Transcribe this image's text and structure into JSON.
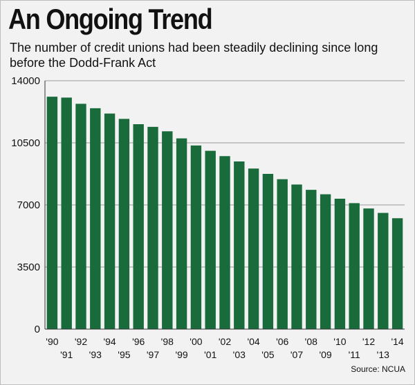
{
  "title": "An Ongoing Trend",
  "subtitle": "The number of credit unions had been steadily declining since long before the Dodd-Frank Act",
  "source": "Source: NCUA",
  "colors": {
    "bar": "#1a6b3c",
    "grid": "#9a9a9a",
    "axis": "#333333",
    "background": "#f2f2f2"
  },
  "chart_data": {
    "type": "bar",
    "title": "An Ongoing Trend",
    "subtitle": "The number of credit unions had been steadily declining since long before the Dodd-Frank Act",
    "categories": [
      "'90",
      "'91",
      "'92",
      "'93",
      "'94",
      "'95",
      "'96",
      "'97",
      "'98",
      "'99",
      "'00",
      "'01",
      "'02",
      "'03",
      "'04",
      "'05",
      "'06",
      "'07",
      "'08",
      "'09",
      "'10",
      "'11",
      "'12",
      "'13",
      "'14"
    ],
    "values": [
      13100,
      13050,
      12700,
      12450,
      12150,
      11850,
      11550,
      11400,
      11150,
      10750,
      10350,
      10050,
      9750,
      9450,
      9050,
      8750,
      8450,
      8150,
      7850,
      7600,
      7350,
      7100,
      6800,
      6550,
      6250
    ],
    "yticks": [
      0,
      3500,
      7000,
      10500,
      14000
    ],
    "ylim": [
      0,
      14000
    ],
    "grid": true,
    "xlabel": "",
    "ylabel": ""
  }
}
